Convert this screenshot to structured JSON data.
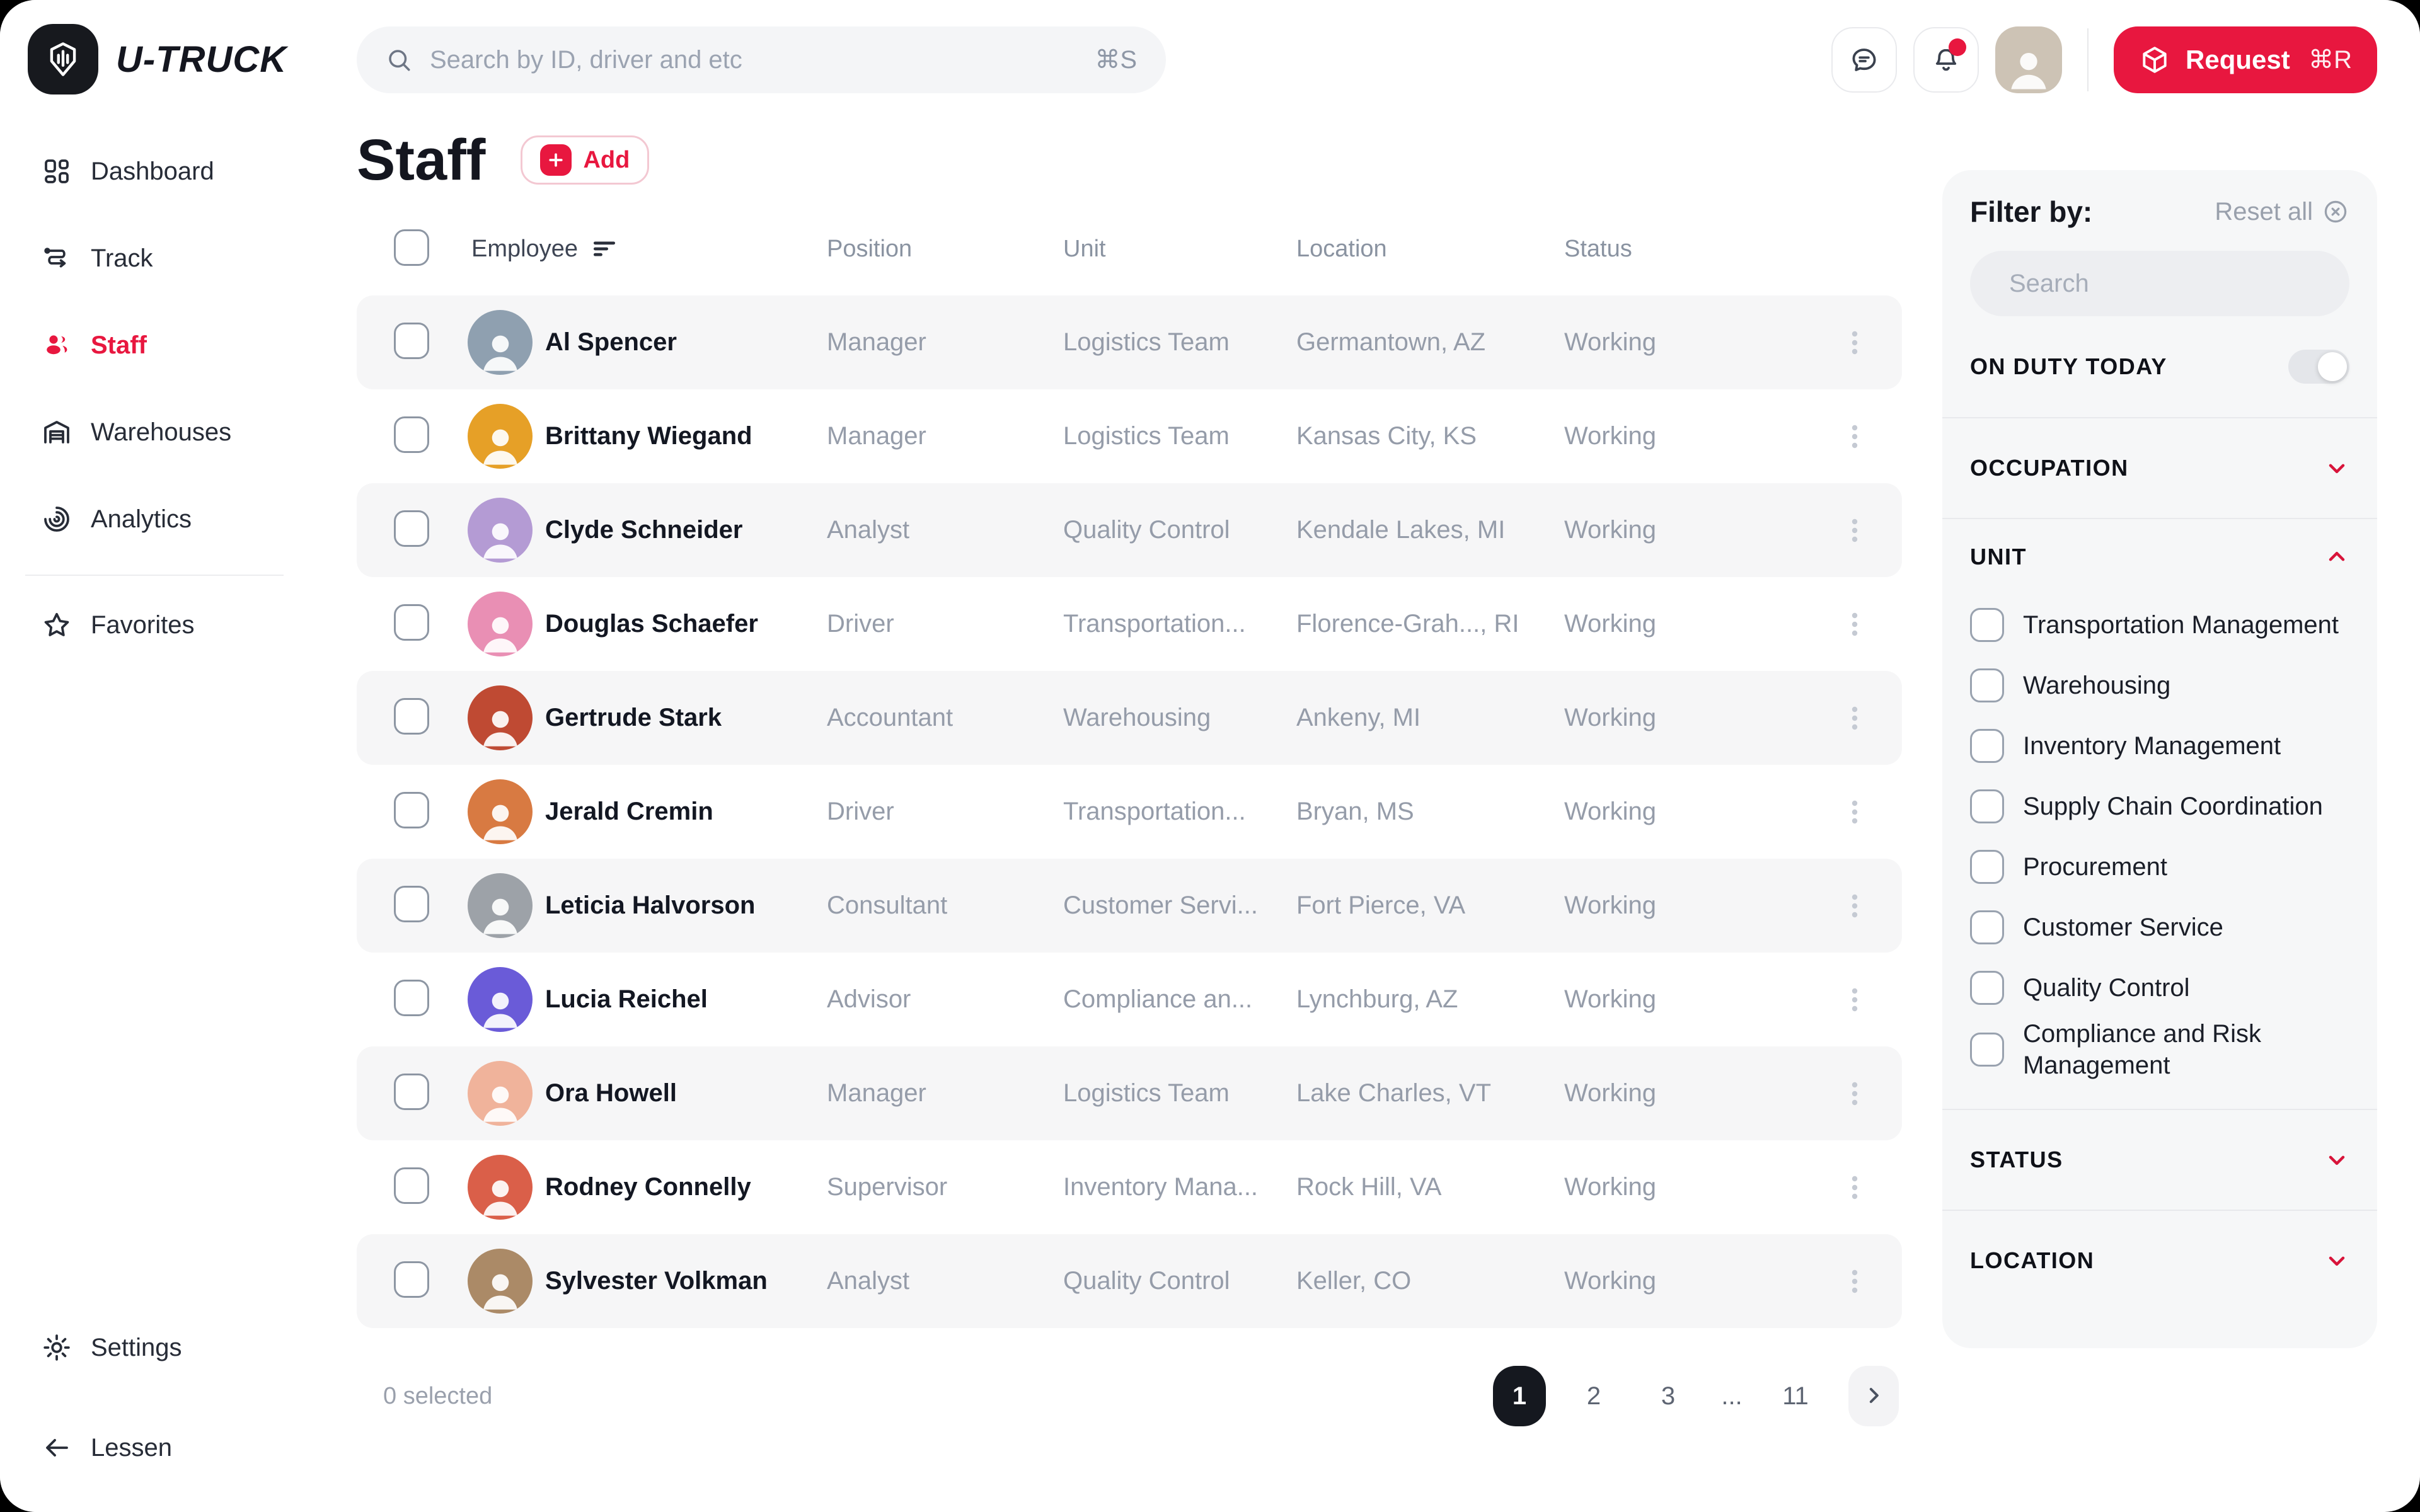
{
  "app": {
    "brand": "U-TRUCK"
  },
  "colors": {
    "accent": "#E8173F",
    "dark": "#15181F"
  },
  "topbar": {
    "search": {
      "placeholder": "Search by ID, driver and etc",
      "shortcut": "⌘S"
    },
    "request_button": {
      "label": "Request",
      "shortcut": "⌘R"
    }
  },
  "sidebar": {
    "items": [
      {
        "label": "Dashboard",
        "icon": "dashboard",
        "active": false,
        "divider_before": false
      },
      {
        "label": "Track",
        "icon": "track",
        "active": false,
        "divider_before": false
      },
      {
        "label": "Staff",
        "icon": "staff",
        "active": true,
        "divider_before": false
      },
      {
        "label": "Warehouses",
        "icon": "warehouse",
        "active": false,
        "divider_before": false
      },
      {
        "label": "Analytics",
        "icon": "analytics",
        "active": false,
        "divider_before": false
      },
      {
        "label": "Favorites",
        "icon": "star",
        "active": false,
        "divider_before": true
      }
    ],
    "footer_items": [
      {
        "label": "Settings",
        "icon": "gear"
      },
      {
        "label": "Lessen",
        "icon": "arrow-left"
      }
    ]
  },
  "page": {
    "title": "Staff",
    "add_button": "Add"
  },
  "table": {
    "columns": [
      "Employee",
      "Position",
      "Unit",
      "Location",
      "Status"
    ],
    "rows": [
      {
        "employee": "Al Spencer",
        "position": "Manager",
        "unit": "Logistics Team",
        "location": "Germantown, AZ",
        "status": "Working",
        "avatar_color": "#8FA0B0"
      },
      {
        "employee": "Brittany Wiegand",
        "position": "Manager",
        "unit": "Logistics Team",
        "location": "Kansas City, KS",
        "status": "Working",
        "avatar_color": "#E6A027"
      },
      {
        "employee": "Clyde Schneider",
        "position": "Analyst",
        "unit": "Quality Control",
        "location": "Kendale Lakes, MI",
        "status": "Working",
        "avatar_color": "#B49BD4"
      },
      {
        "employee": "Douglas Schaefer",
        "position": "Driver",
        "unit": "Transportation...",
        "location": "Florence-Grah..., RI",
        "status": "Working",
        "avatar_color": "#E98FB4"
      },
      {
        "employee": "Gertrude Stark",
        "position": "Accountant",
        "unit": "Warehousing",
        "location": "Ankeny, MI",
        "status": "Working",
        "avatar_color": "#BF4A33"
      },
      {
        "employee": "Jerald Cremin",
        "position": "Driver",
        "unit": "Transportation...",
        "location": "Bryan, MS",
        "status": "Working",
        "avatar_color": "#D87A42"
      },
      {
        "employee": "Leticia Halvorson",
        "position": "Consultant",
        "unit": "Customer Servi...",
        "location": "Fort Pierce, VA",
        "status": "Working",
        "avatar_color": "#9DA2A8"
      },
      {
        "employee": "Lucia Reichel",
        "position": "Advisor",
        "unit": "Compliance an...",
        "location": "Lynchburg, AZ",
        "status": "Working",
        "avatar_color": "#6A5BD8"
      },
      {
        "employee": "Ora Howell",
        "position": "Manager",
        "unit": "Logistics Team",
        "location": "Lake Charles, VT",
        "status": "Working",
        "avatar_color": "#F0B39B"
      },
      {
        "employee": "Rodney Connelly",
        "position": "Supervisor",
        "unit": "Inventory Mana...",
        "location": "Rock Hill, VA",
        "status": "Working",
        "avatar_color": "#DA5F49"
      },
      {
        "employee": "Sylvester Volkman",
        "position": "Analyst",
        "unit": "Quality Control",
        "location": "Keller, CO",
        "status": "Working",
        "avatar_color": "#AB8A67"
      }
    ]
  },
  "footer": {
    "selected_text": "0 selected",
    "pages": [
      "1",
      "2",
      "3",
      "...",
      "11"
    ],
    "active_page": "1"
  },
  "filter_panel": {
    "title": "Filter by:",
    "reset_label": "Reset all",
    "search_placeholder": "Search",
    "on_duty": {
      "label": "ON DUTY TODAY",
      "enabled": true
    },
    "sections": [
      {
        "label": "OCCUPATION",
        "expanded": false,
        "options": []
      },
      {
        "label": "UNIT",
        "expanded": true,
        "options": [
          "Transportation Management",
          "Warehousing",
          "Inventory Management",
          "Supply Chain Coordination",
          "Procurement",
          "Customer Service",
          "Quality Control",
          "Compliance and Risk Management"
        ]
      },
      {
        "label": "STATUS",
        "expanded": false,
        "options": []
      },
      {
        "label": "LOCATION",
        "expanded": false,
        "options": []
      }
    ]
  }
}
